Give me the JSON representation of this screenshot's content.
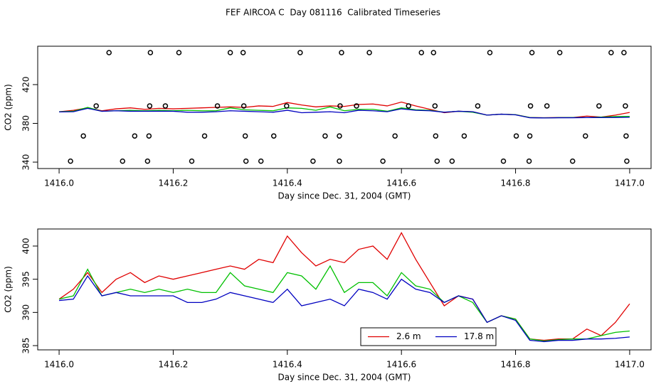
{
  "chart_data": [
    {
      "type": "line",
      "title": "FEF AIRCOA C  Day 081116  Calibrated Timeseries",
      "xlabel": "Day since Dec. 31, 2004 (GMT)",
      "ylabel": "CO2 (ppm)",
      "xlim": [
        1415.9625,
        1417.0375
      ],
      "ylim": [
        333.4,
        459.6
      ],
      "xticks": [
        {
          "value": 1416,
          "label": "1416.0"
        },
        1416.2,
        1416.4,
        1416.6,
        1416.8,
        {
          "value": 1417,
          "label": "1417.0"
        }
      ],
      "yticks": [
        340,
        380,
        420
      ],
      "x": [
        1416.0,
        1416.025,
        1416.05,
        1416.075,
        1416.1,
        1416.125,
        1416.15,
        1416.175,
        1416.2,
        1416.225,
        1416.25,
        1416.275,
        1416.3,
        1416.325,
        1416.35,
        1416.375,
        1416.4,
        1416.425,
        1416.45,
        1416.475,
        1416.5,
        1416.525,
        1416.55,
        1416.575,
        1416.6,
        1416.625,
        1416.65,
        1416.675,
        1416.7,
        1416.725,
        1416.75,
        1416.775,
        1416.8,
        1416.825,
        1416.85,
        1416.875,
        1416.9,
        1416.925,
        1416.95,
        1416.975,
        1417.0
      ],
      "series": [
        {
          "color": "#e00000",
          "values": [
            392.0,
            393.5,
            396.0,
            393.0,
            395.0,
            396.0,
            394.5,
            395.5,
            395.0,
            395.5,
            396.0,
            396.5,
            397.0,
            396.5,
            398.0,
            397.5,
            401.5,
            399.0,
            397.0,
            398.0,
            397.5,
            399.5,
            400.0,
            398.0,
            402.0,
            398.0,
            394.5,
            391.0,
            392.5,
            392.0,
            388.5,
            389.5,
            389.0,
            386.0,
            385.8,
            386.0,
            386.0,
            387.5,
            386.5,
            388.5,
            391.3
          ]
        },
        {
          "color": "#00c000",
          "values": [
            392.0,
            392.5,
            396.5,
            392.5,
            393.0,
            393.5,
            393.0,
            393.5,
            393.0,
            393.5,
            393.0,
            393.0,
            396.0,
            394.0,
            393.5,
            393.0,
            396.0,
            395.5,
            393.5,
            397.0,
            393.0,
            394.5,
            394.5,
            392.5,
            396.0,
            394.0,
            393.5,
            391.5,
            392.5,
            391.5,
            388.5,
            389.5,
            389.0,
            386.0,
            385.7,
            385.9,
            386.0,
            386.0,
            386.5,
            387.0,
            387.2
          ]
        },
        {
          "color": "#0000c0",
          "values": [
            391.8,
            392.0,
            395.5,
            392.5,
            393.0,
            392.5,
            392.5,
            392.5,
            392.5,
            391.5,
            391.5,
            392.0,
            393.0,
            392.5,
            392.0,
            391.5,
            393.5,
            391.0,
            391.5,
            392.0,
            391.0,
            393.5,
            393.0,
            392.0,
            395.0,
            393.5,
            393.0,
            391.5,
            392.5,
            392.0,
            388.5,
            389.5,
            388.8,
            385.8,
            385.6,
            385.8,
            385.8,
            386.0,
            386.0,
            386.1,
            386.3
          ]
        },
        {
          "marker": "circle",
          "color": "#000000",
          "x": [
            1416.0875,
            1416.16,
            1416.21,
            1416.3,
            1416.3225,
            1416.4225,
            1416.495,
            1416.54375,
            1416.635,
            1416.65625,
            1416.755,
            1416.82875,
            1416.8775,
            1416.9675,
            1416.99
          ],
          "values": [
            453,
            453,
            453,
            453,
            453,
            453,
            453,
            453,
            453,
            453,
            453,
            453,
            453,
            453,
            453
          ]
        },
        {
          "marker": "circle",
          "color": "#000000",
          "x": [
            1416.065,
            1416.15875,
            1416.18625,
            1416.2775,
            1416.32375,
            1416.39875,
            1416.4925,
            1416.52125,
            1416.6125,
            1416.65875,
            1416.73375,
            1416.82625,
            1416.855,
            1416.94625,
            1416.9925
          ],
          "values": [
            398,
            398,
            398,
            398,
            398,
            398,
            398,
            398,
            398,
            398,
            398,
            398,
            398,
            398,
            398
          ]
        },
        {
          "marker": "circle",
          "color": "#000000",
          "x": [
            1416.0425,
            1416.1325,
            1416.1575,
            1416.255,
            1416.32625,
            1416.37625,
            1416.46625,
            1416.49125,
            1416.58875,
            1416.66,
            1416.71,
            1416.80125,
            1416.825,
            1416.9225,
            1416.99375
          ],
          "values": [
            367,
            367,
            367,
            367,
            367,
            367,
            367,
            367,
            367,
            367,
            367,
            367,
            367,
            367,
            367
          ]
        },
        {
          "marker": "circle",
          "color": "#000000",
          "x": [
            1416.02,
            1416.11125,
            1416.155,
            1416.2325,
            1416.3275,
            1416.35375,
            1416.445,
            1416.49125,
            1416.5675,
            1416.6625,
            1416.68875,
            1416.77875,
            1416.82375,
            1416.9,
            1416.995
          ],
          "values": [
            341,
            341,
            341,
            341,
            341,
            341,
            341,
            341,
            341,
            341,
            341,
            341,
            341,
            341,
            341
          ]
        }
      ]
    },
    {
      "type": "line",
      "xlabel": "Day since Dec. 31, 2004 (GMT)",
      "ylabel": "CO2 (ppm)",
      "xlim": [
        1415.9625,
        1417.0375
      ],
      "ylim": [
        384.36,
        402.57
      ],
      "xticks": [
        {
          "value": 1416,
          "label": "1416.0"
        },
        1416.2,
        1416.4,
        1416.6,
        1416.8,
        {
          "value": 1417,
          "label": "1417.0"
        }
      ],
      "yticks": [
        385,
        390,
        395,
        400
      ],
      "legend": "bottom",
      "x": [
        1416.0,
        1416.025,
        1416.05,
        1416.075,
        1416.1,
        1416.125,
        1416.15,
        1416.175,
        1416.2,
        1416.225,
        1416.25,
        1416.275,
        1416.3,
        1416.325,
        1416.35,
        1416.375,
        1416.4,
        1416.425,
        1416.45,
        1416.475,
        1416.5,
        1416.525,
        1416.55,
        1416.575,
        1416.6,
        1416.625,
        1416.65,
        1416.675,
        1416.7,
        1416.725,
        1416.75,
        1416.775,
        1416.8,
        1416.825,
        1416.85,
        1416.875,
        1416.9,
        1416.925,
        1416.95,
        1416.975,
        1417.0
      ],
      "series": [
        {
          "name": "2.6 m",
          "color": "#e00000",
          "values": [
            392.0,
            393.5,
            396.0,
            393.0,
            395.0,
            396.0,
            394.5,
            395.5,
            395.0,
            395.5,
            396.0,
            396.5,
            397.0,
            396.5,
            398.0,
            397.5,
            401.5,
            399.0,
            397.0,
            398.0,
            397.5,
            399.5,
            400.0,
            398.0,
            402.0,
            398.0,
            394.5,
            391.0,
            392.5,
            392.0,
            388.5,
            389.5,
            389.0,
            386.0,
            385.8,
            386.0,
            386.0,
            387.5,
            386.5,
            388.5,
            391.3
          ]
        },
        {
          "color": "#00c000",
          "values": [
            392.0,
            392.5,
            396.5,
            392.5,
            393.0,
            393.5,
            393.0,
            393.5,
            393.0,
            393.5,
            393.0,
            393.0,
            396.0,
            394.0,
            393.5,
            393.0,
            396.0,
            395.5,
            393.5,
            397.0,
            393.0,
            394.5,
            394.5,
            392.5,
            396.0,
            394.0,
            393.5,
            391.5,
            392.5,
            391.5,
            388.5,
            389.5,
            389.0,
            386.0,
            385.7,
            385.9,
            386.0,
            386.0,
            386.5,
            387.0,
            387.2
          ]
        },
        {
          "name": "17.8 m",
          "color": "#0000c0",
          "values": [
            391.8,
            392.0,
            395.5,
            392.5,
            393.0,
            392.5,
            392.5,
            392.5,
            392.5,
            391.5,
            391.5,
            392.0,
            393.0,
            392.5,
            392.0,
            391.5,
            393.5,
            391.0,
            391.5,
            392.0,
            391.0,
            393.5,
            393.0,
            392.0,
            395.0,
            393.5,
            393.0,
            391.5,
            392.5,
            392.0,
            388.5,
            389.5,
            388.8,
            385.8,
            385.6,
            385.8,
            385.8,
            386.0,
            386.0,
            386.1,
            386.3
          ]
        }
      ]
    }
  ]
}
